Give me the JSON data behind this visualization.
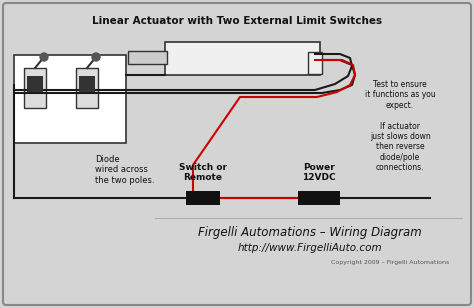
{
  "title": "Linear Actuator with Two External Limit Switches",
  "bg_color": "#d4d4d4",
  "border_color": "#888888",
  "wire_black": "#1a1a1a",
  "wire_red": "#cc0000",
  "component_fill": "#ffffff",
  "component_edge": "#333333",
  "actuator_fill": "#f0f0f0",
  "switch_fill": "#111111",
  "text_color": "#111111",
  "footer_text1": "Firgelli Automations – Wiring Diagram",
  "footer_text2": "http://www.FirgelliAuto.com",
  "footer_text3": "Copyright 2009 – Firgelli Automations",
  "label_diode": "Diode\nwired across\nthe two poles.",
  "label_switch": "Switch or\nRemote",
  "label_power": "Power\n12VDC",
  "label_test": "Test to ensure\nit functions as you\nexpect.\n\nIf actuator\njust slows down\nthen reverse\ndiode/pole\nconnections."
}
